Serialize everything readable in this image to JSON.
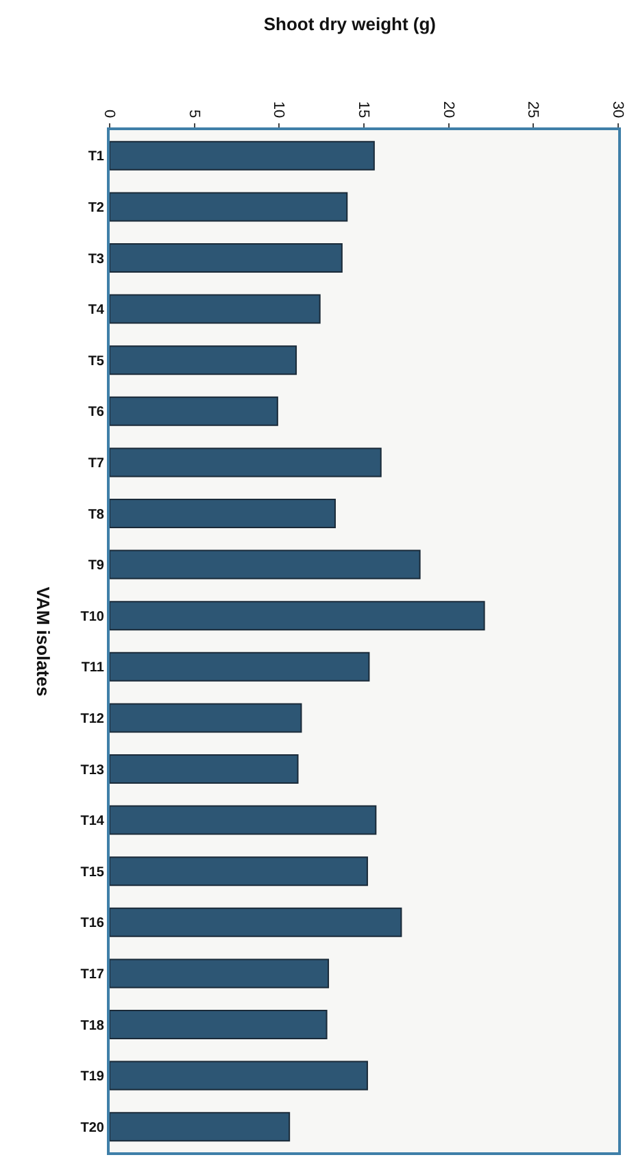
{
  "chart_data": {
    "type": "bar",
    "orientation": "horizontal",
    "title": "Shoot dry weight (g)",
    "ylabel": "VAM isolates",
    "categories": [
      "T1",
      "T2",
      "T3",
      "T4",
      "T5",
      "T6",
      "T7",
      "T8",
      "T9",
      "T10",
      "T11",
      "T12",
      "T13",
      "T14",
      "T15",
      "T16",
      "T17",
      "T18",
      "T19",
      "T20"
    ],
    "values": [
      15.6,
      14.0,
      13.7,
      12.4,
      11.0,
      9.9,
      16.0,
      13.3,
      18.3,
      22.1,
      15.3,
      11.3,
      11.1,
      15.7,
      15.2,
      17.2,
      12.9,
      12.8,
      15.2,
      10.6
    ],
    "color": "#2d5674",
    "xlim": [
      0,
      30
    ],
    "xticks": [
      0,
      5,
      10,
      15,
      20,
      25,
      30
    ],
    "grid": false,
    "legend": false
  }
}
